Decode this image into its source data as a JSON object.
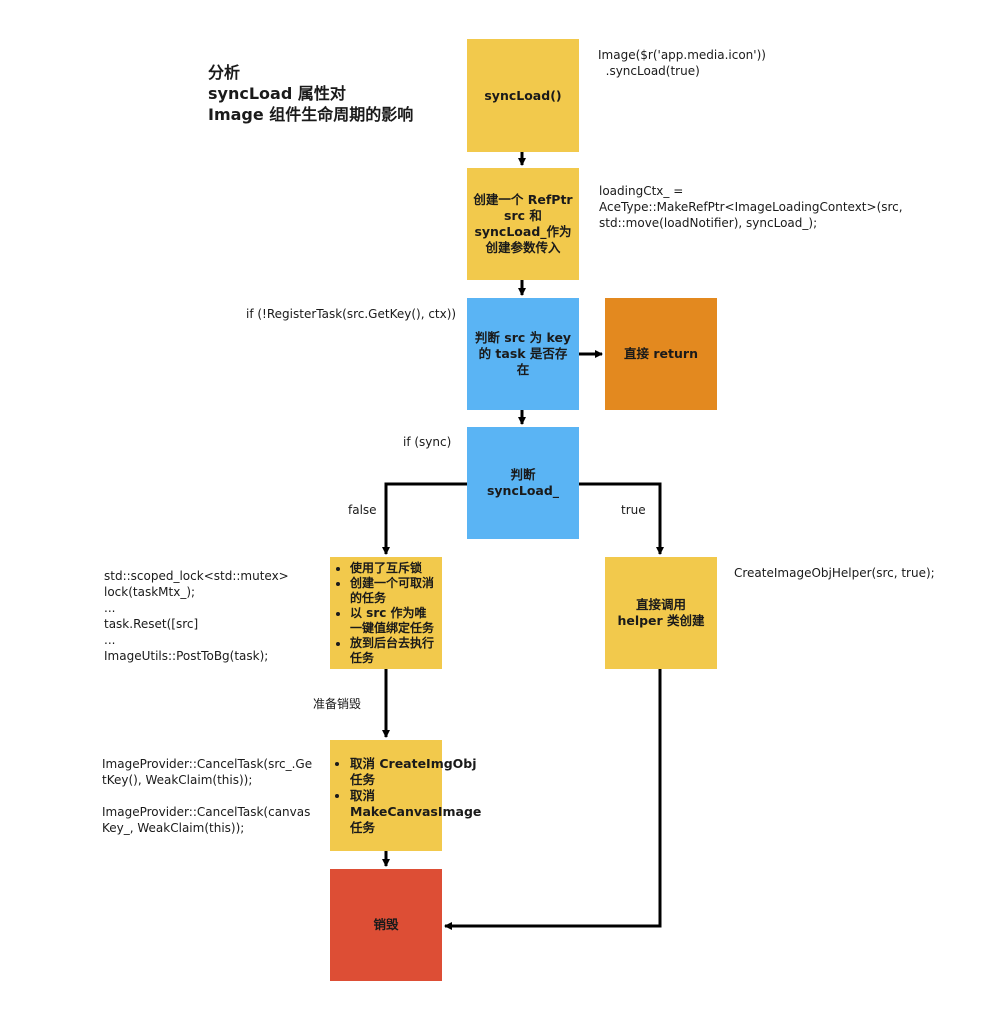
{
  "title": {
    "line1": "分析",
    "line2": "syncLoad 属性对",
    "line3": "Image 组件生命周期的影响"
  },
  "nodes": {
    "syncload": "syncLoad()",
    "create_refptr": "创建一个 RefPtr\nsrc 和\nsyncLoad_作为\n创建参数传入",
    "check_task": "判断 src 为 key\n的 task 是否存\n在",
    "return_direct": "直接 return",
    "check_sync": "判断 syncLoad_",
    "async_steps": [
      "使用了互斥锁",
      "创建一个可取消的任务",
      "以 src 作为唯一键值绑定任务",
      "放到后台去执行任务"
    ],
    "helper_create": "直接调用\nhelper 类创建",
    "cancel_steps": [
      "取消 CreateImgObj 任务",
      "取消 MakeCanvasImage 任务"
    ],
    "destroy": "销毁"
  },
  "notes": {
    "syncload_code": "Image($r('app.media.icon'))\n  .syncLoad(true)",
    "create_code": "loadingCtx_ =\nAceType::MakeRefPtr<ImageLoadingContext>(src,\nstd::move(loadNotifier), syncLoad_);",
    "register_code": "if (!RegisterTask(src.GetKey(), ctx))",
    "if_sync": "if (sync)",
    "async_code": "std::scoped_lock<std::mutex>\nlock(taskMtx_);\n...\ntask.Reset([src]\n...\nImageUtils::PostToBg(task);",
    "helper_code": "CreateImageObjHelper(src, true);",
    "cancel_code": "ImageProvider::CancelTask(src_.Ge\ntKey(), WeakClaim(this));\n\nImageProvider::CancelTask(canvas\nKey_, WeakClaim(this));"
  },
  "edge_labels": {
    "false": "false",
    "true": "true",
    "prepare_destroy": "准备销毁"
  }
}
